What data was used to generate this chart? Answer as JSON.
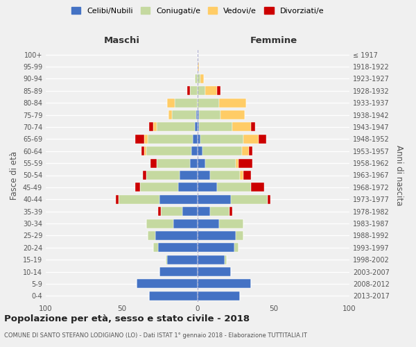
{
  "age_groups": [
    "0-4",
    "5-9",
    "10-14",
    "15-19",
    "20-24",
    "25-29",
    "30-34",
    "35-39",
    "40-44",
    "45-49",
    "50-54",
    "55-59",
    "60-64",
    "65-69",
    "70-74",
    "75-79",
    "80-84",
    "85-89",
    "90-94",
    "95-99",
    "100+"
  ],
  "birth_years": [
    "2013-2017",
    "2008-2012",
    "2003-2007",
    "1998-2002",
    "1993-1997",
    "1988-1992",
    "1983-1987",
    "1978-1982",
    "1973-1977",
    "1968-1972",
    "1963-1967",
    "1958-1962",
    "1953-1957",
    "1948-1952",
    "1943-1947",
    "1938-1942",
    "1933-1937",
    "1928-1932",
    "1923-1927",
    "1918-1922",
    "≤ 1917"
  ],
  "maschi": {
    "celibi": [
      32,
      40,
      25,
      20,
      26,
      28,
      16,
      10,
      25,
      13,
      12,
      5,
      4,
      3,
      2,
      1,
      0,
      0,
      0,
      0,
      0
    ],
    "coniugati": [
      0,
      0,
      0,
      1,
      3,
      5,
      18,
      14,
      27,
      25,
      22,
      22,
      30,
      30,
      25,
      16,
      15,
      5,
      2,
      0,
      0
    ],
    "vedovi": [
      0,
      0,
      0,
      0,
      0,
      0,
      0,
      0,
      0,
      0,
      0,
      0,
      1,
      2,
      2,
      2,
      5,
      0,
      0,
      0,
      0
    ],
    "divorziati": [
      0,
      0,
      0,
      0,
      0,
      0,
      0,
      2,
      2,
      3,
      2,
      4,
      2,
      6,
      3,
      0,
      0,
      2,
      0,
      0,
      0
    ]
  },
  "femmine": {
    "nubili": [
      28,
      35,
      22,
      18,
      24,
      25,
      14,
      8,
      22,
      13,
      8,
      5,
      3,
      2,
      1,
      1,
      0,
      0,
      0,
      0,
      0
    ],
    "coniugate": [
      0,
      0,
      0,
      1,
      3,
      5,
      16,
      13,
      24,
      22,
      20,
      20,
      26,
      28,
      22,
      14,
      14,
      5,
      2,
      0,
      0
    ],
    "vedove": [
      0,
      0,
      0,
      0,
      0,
      0,
      0,
      0,
      0,
      0,
      2,
      2,
      5,
      10,
      12,
      16,
      18,
      8,
      2,
      1,
      0
    ],
    "divorziate": [
      0,
      0,
      0,
      0,
      0,
      0,
      0,
      2,
      2,
      9,
      5,
      9,
      2,
      5,
      3,
      0,
      0,
      2,
      0,
      0,
      0
    ]
  },
  "colors": {
    "celibi": "#4472C4",
    "coniugati": "#c5d9a0",
    "vedovi": "#FFCC66",
    "divorziati": "#CC0000"
  },
  "xlim": 100,
  "title": "Popolazione per età, sesso e stato civile - 2018",
  "subtitle": "COMUNE DI SANTO STEFANO LODIGIANO (LO) - Dati ISTAT 1° gennaio 2018 - Elaborazione TUTTITALIA.IT",
  "ylabel": "Fasce di età",
  "ylabel_right": "Anni di nascita",
  "xlabel_left": "Maschi",
  "xlabel_right": "Femmine",
  "legend_labels": [
    "Celibi/Nubili",
    "Coniugati/e",
    "Vedovi/e",
    "Divorziati/e"
  ],
  "bg_color": "#f0f0f0",
  "grid_color": "#ffffff",
  "bar_edge_color": "#ffffff"
}
